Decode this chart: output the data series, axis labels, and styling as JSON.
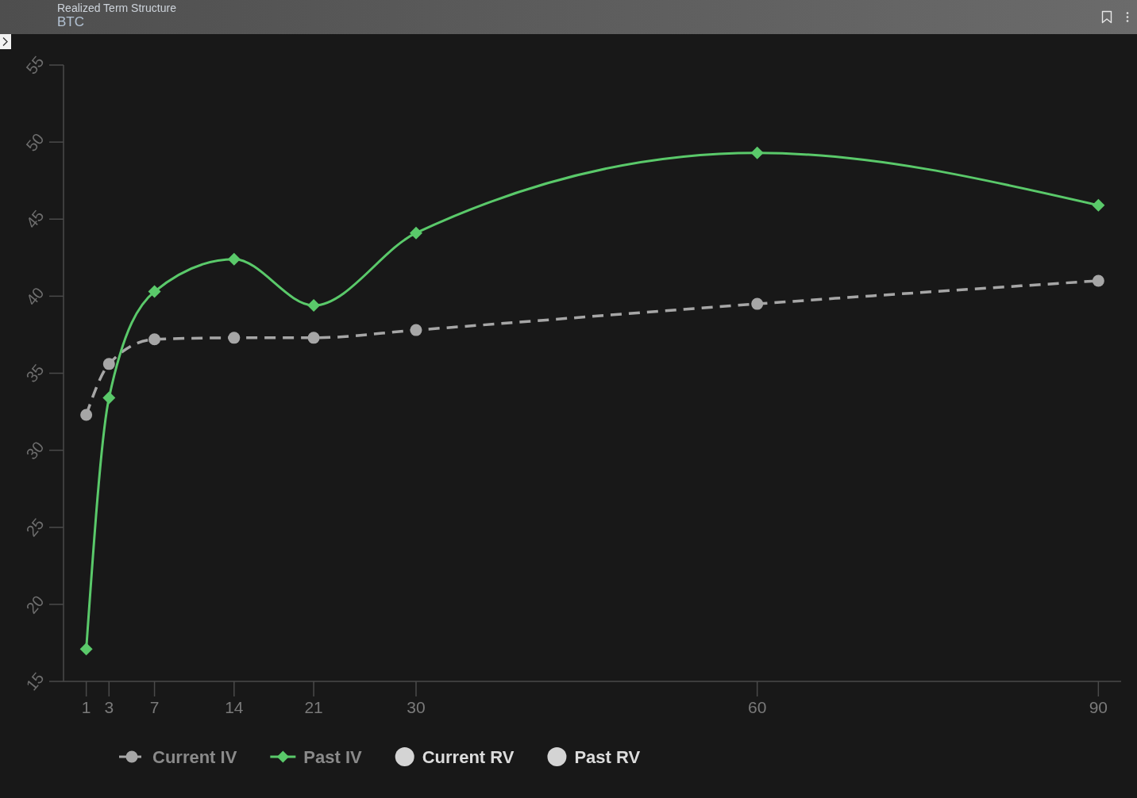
{
  "chart_data": {
    "type": "line",
    "title": "Realized Term Structure",
    "subtitle": "BTC",
    "x": [
      1,
      3,
      7,
      14,
      21,
      30,
      60,
      90
    ],
    "xlim": [
      -1,
      92
    ],
    "xticks": [
      1,
      3,
      7,
      14,
      21,
      30,
      60,
      90
    ],
    "ylim": [
      15,
      55
    ],
    "yticks": [
      15,
      20,
      25,
      30,
      35,
      40,
      45,
      50,
      55
    ],
    "series": [
      {
        "name": "Current IV",
        "color": "#a6a6a6",
        "marker": "circle",
        "line_style": "dashed",
        "values": [
          32.3,
          35.6,
          37.2,
          37.3,
          37.3,
          37.8,
          39.5,
          41.0
        ]
      },
      {
        "name": "Past IV",
        "color": "#5ac96a",
        "marker": "diamond",
        "line_style": "solid",
        "values": [
          17.1,
          33.4,
          40.3,
          42.4,
          39.4,
          44.1,
          49.3,
          45.9
        ]
      },
      {
        "name": "Current RV",
        "type": "scatter",
        "color": "#d4d4d4",
        "marker": "circle",
        "values": [
          null,
          null,
          null,
          null,
          null,
          null,
          null,
          null
        ]
      },
      {
        "name": "Past RV",
        "type": "scatter",
        "color": "#d4d4d4",
        "marker": "circle",
        "values": [
          null,
          null,
          null,
          null,
          null,
          null,
          null,
          null
        ]
      }
    ],
    "legend": "bottom"
  }
}
